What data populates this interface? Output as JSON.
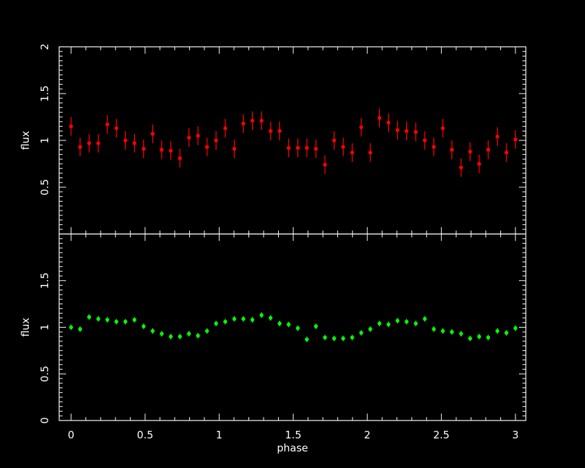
{
  "chart_data": [
    {
      "type": "scatter",
      "title": "",
      "xlabel": "",
      "ylabel": "flux",
      "xlim": [
        -0.08,
        3.07
      ],
      "ylim": [
        0,
        2
      ],
      "xticks": [
        "",
        "",
        "",
        "",
        "",
        "",
        ""
      ],
      "yticks": [
        "0.5",
        "1",
        "1.5",
        "2"
      ],
      "grid": false,
      "marker_color": "#ff0000",
      "series": [
        {
          "x": [
            0.0,
            0.061,
            0.122,
            0.184,
            0.245,
            0.306,
            0.367,
            0.428,
            0.49,
            0.551,
            0.612,
            0.673,
            0.735,
            0.796,
            0.857,
            0.918,
            0.979,
            1.041,
            1.102,
            1.163,
            1.224,
            1.286,
            1.347,
            1.408,
            1.469,
            1.531,
            1.592,
            1.653,
            1.714,
            1.776,
            1.837,
            1.898,
            1.959,
            2.02,
            2.082,
            2.143,
            2.204,
            2.265,
            2.327,
            2.388,
            2.449,
            2.51,
            2.571,
            2.633,
            2.694,
            2.755,
            2.816,
            2.878,
            2.939,
            3.0
          ],
          "y": [
            1.15,
            0.93,
            0.97,
            0.97,
            1.17,
            1.13,
            1.0,
            0.97,
            0.91,
            1.07,
            0.9,
            0.89,
            0.81,
            1.03,
            1.05,
            0.93,
            1.0,
            1.13,
            0.91,
            1.18,
            1.21,
            1.21,
            1.1,
            1.1,
            0.92,
            0.92,
            0.92,
            0.91,
            0.74,
            1.0,
            0.93,
            0.87,
            1.14,
            0.87,
            1.24,
            1.19,
            1.11,
            1.1,
            1.09,
            1.0,
            0.93,
            1.13,
            0.9,
            0.71,
            0.88,
            0.75,
            0.9,
            1.04,
            0.87,
            1.01
          ],
          "yerr": 0.1
        }
      ]
    },
    {
      "type": "scatter",
      "title": "",
      "xlabel": "phase",
      "ylabel": "flux",
      "xlim": [
        -0.08,
        3.07
      ],
      "ylim": [
        0,
        2
      ],
      "xticks": [
        "0",
        "0.5",
        "1",
        "1.5",
        "2",
        "2.5",
        "3"
      ],
      "yticks": [
        "0",
        "0.5",
        "1",
        "1.5"
      ],
      "grid": false,
      "marker_color": "#00ff00",
      "series": [
        {
          "x": [
            0.0,
            0.061,
            0.122,
            0.184,
            0.245,
            0.306,
            0.367,
            0.428,
            0.49,
            0.551,
            0.612,
            0.673,
            0.735,
            0.796,
            0.857,
            0.918,
            0.979,
            1.041,
            1.102,
            1.163,
            1.224,
            1.286,
            1.347,
            1.408,
            1.469,
            1.531,
            1.592,
            1.653,
            1.714,
            1.776,
            1.837,
            1.898,
            1.959,
            2.02,
            2.082,
            2.143,
            2.204,
            2.265,
            2.327,
            2.388,
            2.449,
            2.51,
            2.571,
            2.633,
            2.694,
            2.755,
            2.816,
            2.878,
            2.939,
            3.0
          ],
          "y": [
            1.0,
            0.98,
            1.11,
            1.09,
            1.08,
            1.06,
            1.06,
            1.08,
            1.01,
            0.96,
            0.93,
            0.9,
            0.9,
            0.93,
            0.91,
            0.96,
            1.04,
            1.06,
            1.09,
            1.09,
            1.08,
            1.13,
            1.1,
            1.04,
            1.03,
            0.99,
            0.87,
            1.01,
            0.89,
            0.88,
            0.88,
            0.89,
            0.94,
            0.98,
            1.04,
            1.03,
            1.07,
            1.06,
            1.04,
            1.09,
            0.98,
            0.96,
            0.95,
            0.93,
            0.88,
            0.9,
            0.89,
            0.96,
            0.94,
            0.99
          ],
          "yerr": 0.03
        }
      ]
    }
  ]
}
